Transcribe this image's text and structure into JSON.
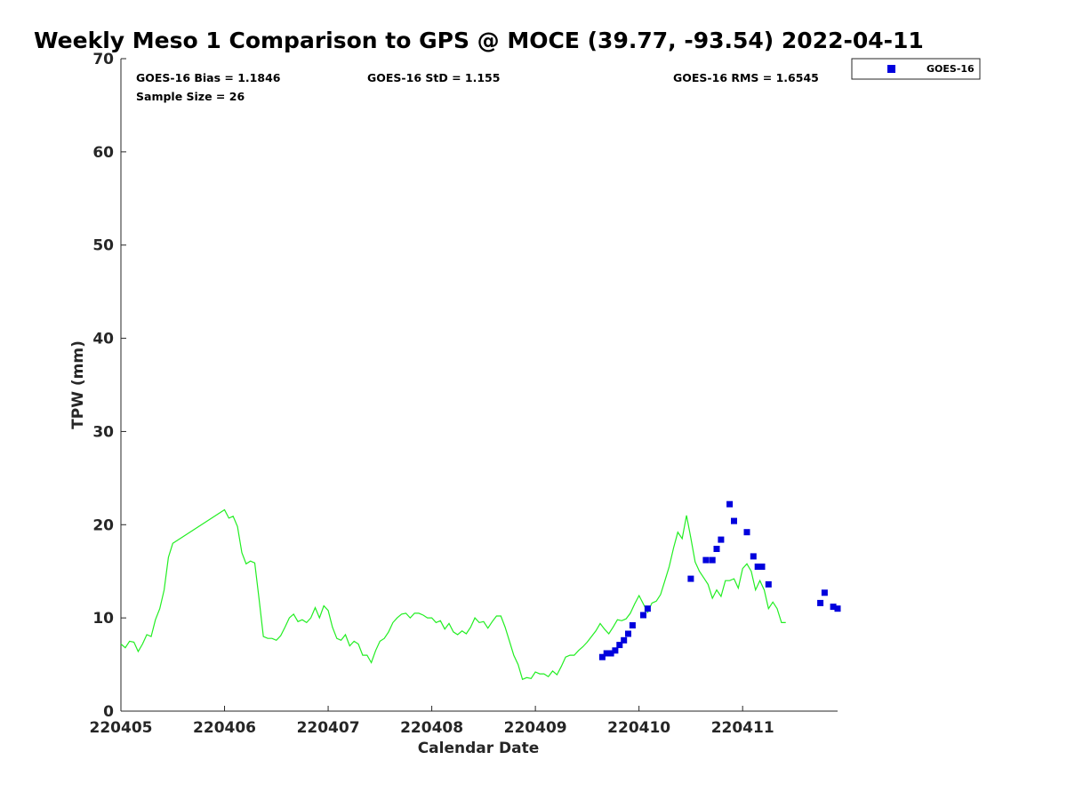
{
  "colors": {
    "gps_line": "#22ee22",
    "goes_markers": "#0000dd",
    "axis": "#262626"
  },
  "chart_data": {
    "type": "scatter",
    "title": "Weekly Meso 1 Comparison to GPS @ MOCE (39.77, -93.54) 2022-04-11",
    "xlabel": "Calendar Date",
    "ylabel": "TPW (mm)",
    "x_ticks": [
      "220405",
      "220406",
      "220407",
      "220408",
      "220409",
      "220410",
      "220411"
    ],
    "y_ticks": [
      "0",
      "10",
      "20",
      "30",
      "40",
      "50",
      "60",
      "70"
    ],
    "xlim": [
      "2022-04-05 00:00",
      "2022-04-11 22:00"
    ],
    "ylim": [
      0,
      70
    ],
    "grid": false,
    "legend": {
      "position": "top-right",
      "entries": [
        "GOES-16"
      ]
    },
    "stats": {
      "bias": "GOES-16 Bias = 1.1846",
      "std": "GOES-16 StD = 1.155",
      "rms": "GOES-16 RMS = 1.6545",
      "sample_size": "Sample Size = 26"
    },
    "series": [
      {
        "values": [
          [
            "2022-04-05 00:00",
            7.2
          ],
          [
            "2022-04-05 01:00",
            6.8
          ],
          [
            "2022-04-05 02:00",
            7.5
          ],
          [
            "2022-04-05 03:00",
            7.4
          ],
          [
            "2022-04-05 04:00",
            6.4
          ],
          [
            "2022-04-05 05:00",
            7.2
          ],
          [
            "2022-04-05 06:00",
            8.2
          ],
          [
            "2022-04-05 07:00",
            8.0
          ],
          [
            "2022-04-05 08:00",
            9.8
          ],
          [
            "2022-04-05 09:00",
            11.0
          ],
          [
            "2022-04-05 10:00",
            13.0
          ],
          [
            "2022-04-05 11:00",
            16.5
          ],
          [
            "2022-04-05 12:00",
            18.0
          ],
          [
            "2022-04-06 00:00",
            21.6
          ],
          [
            "2022-04-06 01:00",
            20.7
          ],
          [
            "2022-04-06 02:00",
            20.9
          ],
          [
            "2022-04-06 03:00",
            19.8
          ],
          [
            "2022-04-06 04:00",
            17.0
          ],
          [
            "2022-04-06 05:00",
            15.8
          ],
          [
            "2022-04-06 06:00",
            16.1
          ],
          [
            "2022-04-06 07:00",
            15.9
          ],
          [
            "2022-04-06 08:00",
            12.0
          ],
          [
            "2022-04-06 09:00",
            8.0
          ],
          [
            "2022-04-06 10:00",
            7.8
          ],
          [
            "2022-04-06 11:00",
            7.8
          ],
          [
            "2022-04-06 12:00",
            7.6
          ],
          [
            "2022-04-06 13:00",
            8.1
          ],
          [
            "2022-04-06 14:00",
            9.0
          ],
          [
            "2022-04-06 15:00",
            10.0
          ],
          [
            "2022-04-06 16:00",
            10.4
          ],
          [
            "2022-04-06 17:00",
            9.6
          ],
          [
            "2022-04-06 18:00",
            9.8
          ],
          [
            "2022-04-06 19:00",
            9.5
          ],
          [
            "2022-04-06 20:00",
            10.0
          ],
          [
            "2022-04-06 21:00",
            11.1
          ],
          [
            "2022-04-06 22:00",
            10.0
          ],
          [
            "2022-04-06 23:00",
            11.3
          ],
          [
            "2022-04-07 00:00",
            10.8
          ],
          [
            "2022-04-07 01:00",
            9.0
          ],
          [
            "2022-04-07 02:00",
            7.8
          ],
          [
            "2022-04-07 03:00",
            7.6
          ],
          [
            "2022-04-07 04:00",
            8.2
          ],
          [
            "2022-04-07 05:00",
            7.0
          ],
          [
            "2022-04-07 06:00",
            7.5
          ],
          [
            "2022-04-07 07:00",
            7.2
          ],
          [
            "2022-04-07 08:00",
            6.0
          ],
          [
            "2022-04-07 09:00",
            6.0
          ],
          [
            "2022-04-07 10:00",
            5.2
          ],
          [
            "2022-04-07 11:00",
            6.5
          ],
          [
            "2022-04-07 12:00",
            7.5
          ],
          [
            "2022-04-07 13:00",
            7.8
          ],
          [
            "2022-04-07 14:00",
            8.5
          ],
          [
            "2022-04-07 15:00",
            9.5
          ],
          [
            "2022-04-07 16:00",
            10.0
          ],
          [
            "2022-04-07 17:00",
            10.4
          ],
          [
            "2022-04-07 18:00",
            10.5
          ],
          [
            "2022-04-07 19:00",
            10.0
          ],
          [
            "2022-04-07 20:00",
            10.5
          ],
          [
            "2022-04-07 21:00",
            10.5
          ],
          [
            "2022-04-07 22:00",
            10.3
          ],
          [
            "2022-04-07 23:00",
            10.0
          ],
          [
            "2022-04-08 00:00",
            10.0
          ],
          [
            "2022-04-08 01:00",
            9.5
          ],
          [
            "2022-04-08 02:00",
            9.7
          ],
          [
            "2022-04-08 03:00",
            8.8
          ],
          [
            "2022-04-08 04:00",
            9.4
          ],
          [
            "2022-04-08 05:00",
            8.5
          ],
          [
            "2022-04-08 06:00",
            8.2
          ],
          [
            "2022-04-08 07:00",
            8.6
          ],
          [
            "2022-04-08 08:00",
            8.3
          ],
          [
            "2022-04-08 09:00",
            9.0
          ],
          [
            "2022-04-08 10:00",
            10.0
          ],
          [
            "2022-04-08 11:00",
            9.5
          ],
          [
            "2022-04-08 12:00",
            9.6
          ],
          [
            "2022-04-08 13:00",
            8.9
          ],
          [
            "2022-04-08 14:00",
            9.6
          ],
          [
            "2022-04-08 15:00",
            10.2
          ],
          [
            "2022-04-08 16:00",
            10.2
          ],
          [
            "2022-04-08 17:00",
            9.0
          ],
          [
            "2022-04-08 18:00",
            7.5
          ],
          [
            "2022-04-08 19:00",
            6.0
          ],
          [
            "2022-04-08 20:00",
            5.0
          ],
          [
            "2022-04-08 21:00",
            3.4
          ],
          [
            "2022-04-08 22:00",
            3.6
          ],
          [
            "2022-04-08 23:00",
            3.5
          ],
          [
            "2022-04-09 00:00",
            4.2
          ],
          [
            "2022-04-09 01:00",
            4.0
          ],
          [
            "2022-04-09 02:00",
            4.0
          ],
          [
            "2022-04-09 03:00",
            3.7
          ],
          [
            "2022-04-09 04:00",
            4.3
          ],
          [
            "2022-04-09 05:00",
            3.9
          ],
          [
            "2022-04-09 06:00",
            4.8
          ],
          [
            "2022-04-09 07:00",
            5.8
          ],
          [
            "2022-04-09 08:00",
            6.0
          ],
          [
            "2022-04-09 09:00",
            6.0
          ],
          [
            "2022-04-09 10:00",
            6.5
          ],
          [
            "2022-04-09 11:00",
            6.9
          ],
          [
            "2022-04-09 12:00",
            7.4
          ],
          [
            "2022-04-09 13:00",
            8.0
          ],
          [
            "2022-04-09 14:00",
            8.6
          ],
          [
            "2022-04-09 15:00",
            9.4
          ],
          [
            "2022-04-09 16:00",
            8.8
          ],
          [
            "2022-04-09 17:00",
            8.3
          ],
          [
            "2022-04-09 18:00",
            9.0
          ],
          [
            "2022-04-09 19:00",
            9.8
          ],
          [
            "2022-04-09 20:00",
            9.7
          ],
          [
            "2022-04-09 21:00",
            9.9
          ],
          [
            "2022-04-09 22:00",
            10.5
          ],
          [
            "2022-04-09 23:00",
            11.5
          ],
          [
            "2022-04-10 00:00",
            12.4
          ],
          [
            "2022-04-10 01:00",
            11.5
          ],
          [
            "2022-04-10 02:00",
            10.6
          ],
          [
            "2022-04-10 03:00",
            11.6
          ],
          [
            "2022-04-10 04:00",
            11.8
          ],
          [
            "2022-04-10 05:00",
            12.5
          ],
          [
            "2022-04-10 06:00",
            14.0
          ],
          [
            "2022-04-10 07:00",
            15.5
          ],
          [
            "2022-04-10 08:00",
            17.5
          ],
          [
            "2022-04-10 09:00",
            19.2
          ],
          [
            "2022-04-10 10:00",
            18.5
          ],
          [
            "2022-04-10 11:00",
            21.0
          ],
          [
            "2022-04-10 12:00",
            18.6
          ],
          [
            "2022-04-10 13:00",
            16.0
          ],
          [
            "2022-04-10 14:00",
            15.0
          ],
          [
            "2022-04-10 15:00",
            14.3
          ],
          [
            "2022-04-10 16:00",
            13.6
          ],
          [
            "2022-04-10 17:00",
            12.1
          ],
          [
            "2022-04-10 18:00",
            13.0
          ],
          [
            "2022-04-10 19:00",
            12.3
          ],
          [
            "2022-04-10 20:00",
            14.0
          ],
          [
            "2022-04-10 21:00",
            14.0
          ],
          [
            "2022-04-10 22:00",
            14.2
          ],
          [
            "2022-04-10 23:00",
            13.2
          ],
          [
            "2022-04-11 00:00",
            15.3
          ],
          [
            "2022-04-11 01:00",
            15.8
          ],
          [
            "2022-04-11 02:00",
            15.0
          ],
          [
            "2022-04-11 03:00",
            13.0
          ],
          [
            "2022-04-11 04:00",
            14.0
          ],
          [
            "2022-04-11 05:00",
            13.0
          ],
          [
            "2022-04-11 06:00",
            11.0
          ],
          [
            "2022-04-11 07:00",
            11.7
          ],
          [
            "2022-04-11 08:00",
            11.0
          ],
          [
            "2022-04-11 09:00",
            9.5
          ],
          [
            "2022-04-11 10:00",
            9.5
          ]
        ]
      },
      {
        "name": "GOES-16",
        "values": [
          [
            "2022-04-09 15:30",
            5.8
          ],
          [
            "2022-04-09 16:30",
            6.2
          ],
          [
            "2022-04-09 17:30",
            6.2
          ],
          [
            "2022-04-09 18:30",
            6.5
          ],
          [
            "2022-04-09 19:30",
            7.1
          ],
          [
            "2022-04-09 20:30",
            7.6
          ],
          [
            "2022-04-09 21:30",
            8.3
          ],
          [
            "2022-04-09 22:30",
            9.2
          ],
          [
            "2022-04-10 01:00",
            10.3
          ],
          [
            "2022-04-10 02:00",
            11.0
          ],
          [
            "2022-04-10 12:00",
            14.2
          ],
          [
            "2022-04-10 15:30",
            16.2
          ],
          [
            "2022-04-10 17:00",
            16.2
          ],
          [
            "2022-04-10 18:00",
            17.4
          ],
          [
            "2022-04-10 19:00",
            18.4
          ],
          [
            "2022-04-10 21:00",
            22.2
          ],
          [
            "2022-04-10 22:00",
            20.4
          ],
          [
            "2022-04-11 01:00",
            19.2
          ],
          [
            "2022-04-11 02:30",
            16.6
          ],
          [
            "2022-04-11 03:30",
            15.5
          ],
          [
            "2022-04-11 04:30",
            15.5
          ],
          [
            "2022-04-11 06:00",
            13.6
          ],
          [
            "2022-04-11 18:00",
            11.6
          ],
          [
            "2022-04-11 19:00",
            12.7
          ],
          [
            "2022-04-11 21:00",
            11.2
          ],
          [
            "2022-04-11 22:00",
            11.0
          ]
        ]
      }
    ]
  }
}
